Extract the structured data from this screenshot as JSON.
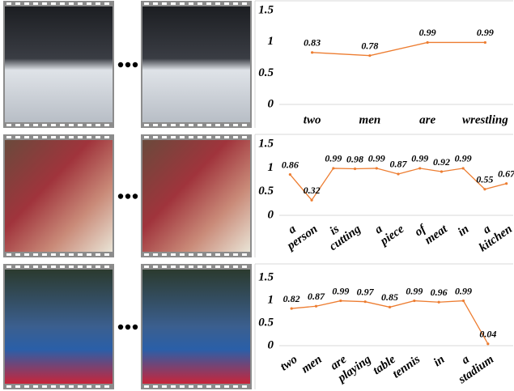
{
  "chart_data": [
    {
      "type": "line",
      "color": "#ed7d31",
      "ylim": [
        0,
        1.5
      ],
      "yticks": [
        0,
        0.5,
        1,
        1.5
      ],
      "categories": [
        "two",
        "men",
        "are",
        "wrestling"
      ],
      "values": [
        0.83,
        0.78,
        0.99,
        0.99
      ]
    },
    {
      "type": "line",
      "color": "#ed7d31",
      "ylim": [
        0,
        1.5
      ],
      "yticks": [
        0,
        0.5,
        1,
        1.5
      ],
      "categories": [
        "a",
        "person",
        "is",
        "cutting",
        "a",
        "piece",
        "of",
        "meat",
        "in",
        "a",
        "kitchen"
      ],
      "values": [
        0.86,
        0.32,
        0.99,
        0.98,
        0.99,
        0.87,
        0.99,
        0.92,
        0.99,
        0.55,
        0.67
      ]
    },
    {
      "type": "line",
      "color": "#ed7d31",
      "ylim": [
        0,
        1.5
      ],
      "yticks": [
        0,
        0.5,
        1,
        1.5
      ],
      "categories": [
        "two",
        "men",
        "are",
        "playing",
        "table",
        "tennis",
        "in",
        "a",
        "stadium"
      ],
      "values": [
        0.82,
        0.87,
        0.99,
        0.97,
        0.85,
        0.99,
        0.96,
        0.99,
        0.04
      ]
    }
  ]
}
